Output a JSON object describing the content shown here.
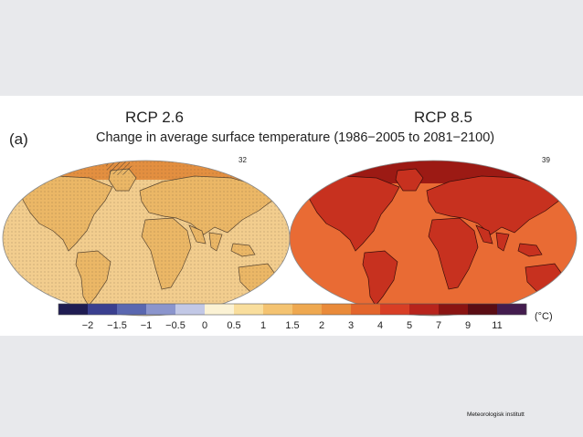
{
  "figure": {
    "panel_label": "(a)",
    "scenarios": [
      {
        "title": "RCP 2.6",
        "grid_count": "32",
        "fill": "#f2cd8e",
        "land": "#ebb766",
        "hot": "#e38f40",
        "stipple": true
      },
      {
        "title": "RCP 8.5",
        "grid_count": "39",
        "fill": "#e96b34",
        "land": "#c7311f",
        "hot": "#9c1a14",
        "stipple": false
      }
    ],
    "subtitle": "Change in average surface temperature (1986−2005 to 2081−2100)"
  },
  "colorbar": {
    "colors": [
      "#1f1c52",
      "#3a3f8f",
      "#5a67b0",
      "#8b95cd",
      "#c2c8e6",
      "#fbf2d4",
      "#f9de9d",
      "#f4c371",
      "#eea850",
      "#e98a3a",
      "#e3652c",
      "#d83e25",
      "#b8241c",
      "#8a1412",
      "#5a0d14",
      "#431c4e"
    ],
    "ticks": [
      "−2",
      "−1.5",
      "−1",
      "−0.5",
      "0",
      "0.5",
      "1",
      "1.5",
      "2",
      "3",
      "4",
      "5",
      "7",
      "9",
      "11"
    ],
    "unit": "(°C)"
  },
  "footer": {
    "source": "Meteorologisk institutt"
  }
}
